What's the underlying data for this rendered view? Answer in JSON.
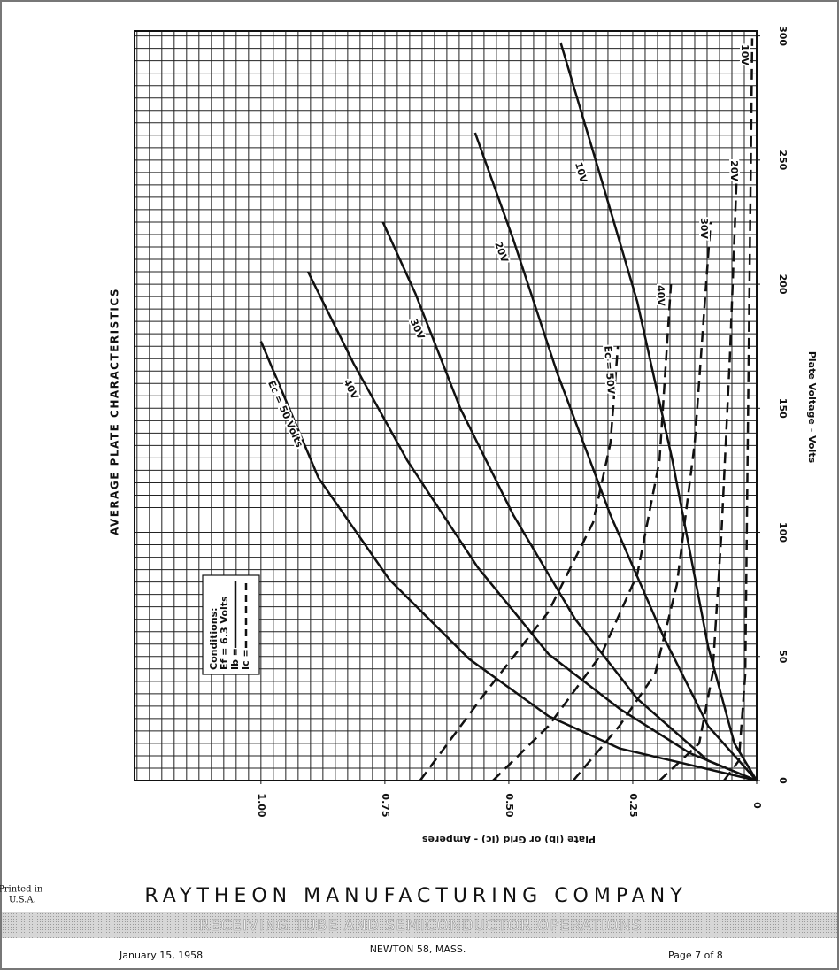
{
  "chart_data": {
    "type": "line",
    "title": "AVERAGE PLATE CHARACTERISTICS",
    "x_label": "Plate (Ib) or Grid (Ic) - Amperes",
    "y_label": "Plate Voltage - Volts",
    "xlim": [
      0,
      1.255
    ],
    "ylim": [
      0,
      302
    ],
    "x_reversed": true,
    "xticks": [
      0,
      0.25,
      {
        "value": 0.5,
        "label": "0.50"
      },
      0.75,
      {
        "value": 1,
        "label": "1.00"
      }
    ],
    "yticks": [
      0,
      50,
      100,
      150,
      200,
      250,
      300
    ],
    "grid": true,
    "minor_grid": {
      "x": 0.025,
      "y": 5
    },
    "conditions": {
      "title": "Conditions:",
      "ef": "Ef = 6.3 Volts",
      "ib": "Ib =",
      "ic": "Ic ="
    },
    "series": [
      {
        "name": "Ec = 50 Volts",
        "color": "#111111",
        "style": "solid",
        "x": [
          1.0,
          0.884,
          0.741,
          0.58,
          0.42,
          0.277,
          0
        ],
        "values": [
          177,
          122,
          81,
          49,
          26,
          13,
          0
        ]
      },
      {
        "name": "40V",
        "color": "#111111",
        "style": "solid",
        "x": [
          0.905,
          0.813,
          0.705,
          0.563,
          0.42,
          0.277,
          0.134,
          0
        ],
        "values": [
          205,
          168,
          129,
          86,
          51,
          29,
          11,
          0
        ]
      },
      {
        "name": "30V",
        "color": "#111111",
        "style": "solid",
        "x": [
          0.754,
          0.688,
          0.598,
          0.491,
          0.366,
          0.241,
          0.098,
          0
        ],
        "values": [
          225,
          196,
          150,
          107,
          65,
          33,
          8,
          0
        ]
      },
      {
        "name": "20V",
        "color": "#111111",
        "style": "solid",
        "x": [
          0.568,
          0.491,
          0.402,
          0.295,
          0.188,
          0.098,
          0
        ],
        "values": [
          261,
          218,
          164,
          107,
          58,
          22,
          0
        ]
      },
      {
        "name": "10V",
        "color": "#111111",
        "style": "solid",
        "x": [
          0.395,
          0.313,
          0.241,
          0.17,
          0.098,
          0.045,
          0
        ],
        "values": [
          297,
          242,
          193,
          129,
          54,
          15,
          0
        ]
      },
      {
        "name": "Ec = 50V",
        "color": "#111111",
        "style": "dashed",
        "x": [
          0.679,
          0.545,
          0.42,
          0.33,
          0.295,
          0.28
        ],
        "values": [
          0,
          36,
          68,
          104,
          136,
          175
        ]
      },
      {
        "name": "40V",
        "color": "#111111",
        "style": "dashed",
        "x": [
          0.532,
          0.42,
          0.313,
          0.241,
          0.196,
          0.173
        ],
        "values": [
          0,
          22,
          51,
          83,
          129,
          200
        ]
      },
      {
        "name": "30V",
        "color": "#111111",
        "style": "dashed",
        "x": [
          0.37,
          0.277,
          0.205,
          0.161,
          0.125,
          0.093
        ],
        "values": [
          0,
          22,
          43,
          79,
          136,
          225
        ]
      },
      {
        "name": "20V",
        "color": "#111111",
        "style": "dashed",
        "x": [
          0.196,
          0.116,
          0.089,
          0.071,
          0.054,
          0.039
        ],
        "values": [
          0,
          15,
          43,
          100,
          171,
          250
        ]
      },
      {
        "name": "10V",
        "color": "#111111",
        "style": "dashed",
        "x": [
          0.066,
          0.036,
          0.023,
          0.018,
          0.009
        ],
        "values": [
          0,
          8,
          43,
          136,
          299
        ]
      }
    ]
  },
  "footer": {
    "printed_in": [
      "Printed in",
      "U.S.A."
    ],
    "company": "RAYTHEON MANUFACTURING COMPANY",
    "division": "RECEIVING TUBE AND SEMICONDUCTOR OPERATIONS",
    "date": "January 15, 1958",
    "location": "NEWTON 58, MASS.",
    "page": "Page 7 of 8"
  }
}
